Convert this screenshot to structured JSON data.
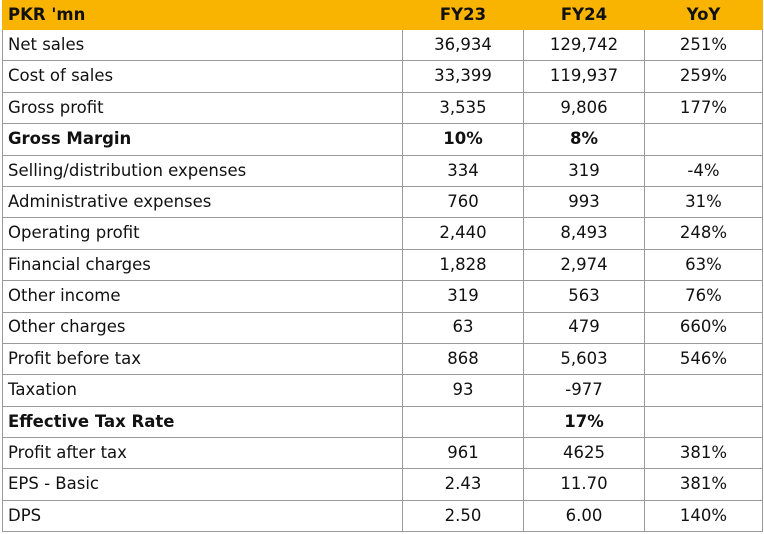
{
  "header": {
    "label": "PKR 'mn",
    "fy23": "FY23",
    "fy24": "FY24",
    "yoy": "YoY"
  },
  "rows": [
    {
      "label": "Net sales",
      "fy23": "36,934",
      "fy24": "129,742",
      "yoy": "251%"
    },
    {
      "label": "Cost of sales",
      "fy23": "33,399",
      "fy24": "119,937",
      "yoy": "259%"
    },
    {
      "label": "Gross profit",
      "fy23": "3,535",
      "fy24": "9,806",
      "yoy": "177%"
    },
    {
      "label": "Gross Margin",
      "fy23": "10%",
      "fy24": "8%",
      "yoy": ""
    },
    {
      "label": "Selling/distribution expenses",
      "fy23": "334",
      "fy24": "319",
      "yoy": "-4%"
    },
    {
      "label": "Administrative expenses",
      "fy23": "760",
      "fy24": "993",
      "yoy": "31%"
    },
    {
      "label": "Operating profit",
      "fy23": "2,440",
      "fy24": "8,493",
      "yoy": "248%"
    },
    {
      "label": "Financial charges",
      "fy23": "1,828",
      "fy24": "2,974",
      "yoy": "63%"
    },
    {
      "label": "Other income",
      "fy23": "319",
      "fy24": "563",
      "yoy": "76%"
    },
    {
      "label": "Other charges",
      "fy23": "63",
      "fy24": "479",
      "yoy": "660%"
    },
    {
      "label": "Profit before tax",
      "fy23": "868",
      "fy24": "5,603",
      "yoy": "546%"
    },
    {
      "label": "Taxation",
      "fy23": "93",
      "fy24": "-977",
      "yoy": ""
    },
    {
      "label": "Effective Tax Rate",
      "fy23": "",
      "fy24": "17%",
      "yoy": ""
    },
    {
      "label": "Profit after tax",
      "fy23": "961",
      "fy24": "4625",
      "yoy": "381%"
    },
    {
      "label": "EPS - Basic",
      "fy23": "2.43",
      "fy24": "11.70",
      "yoy": "381%"
    },
    {
      "label": "DPS",
      "fy23": "2.50",
      "fy24": "6.00",
      "yoy": "140%"
    }
  ],
  "colors": {
    "header_bg": "#f8b400",
    "border": "#9a9a9a",
    "text": "#111111"
  }
}
